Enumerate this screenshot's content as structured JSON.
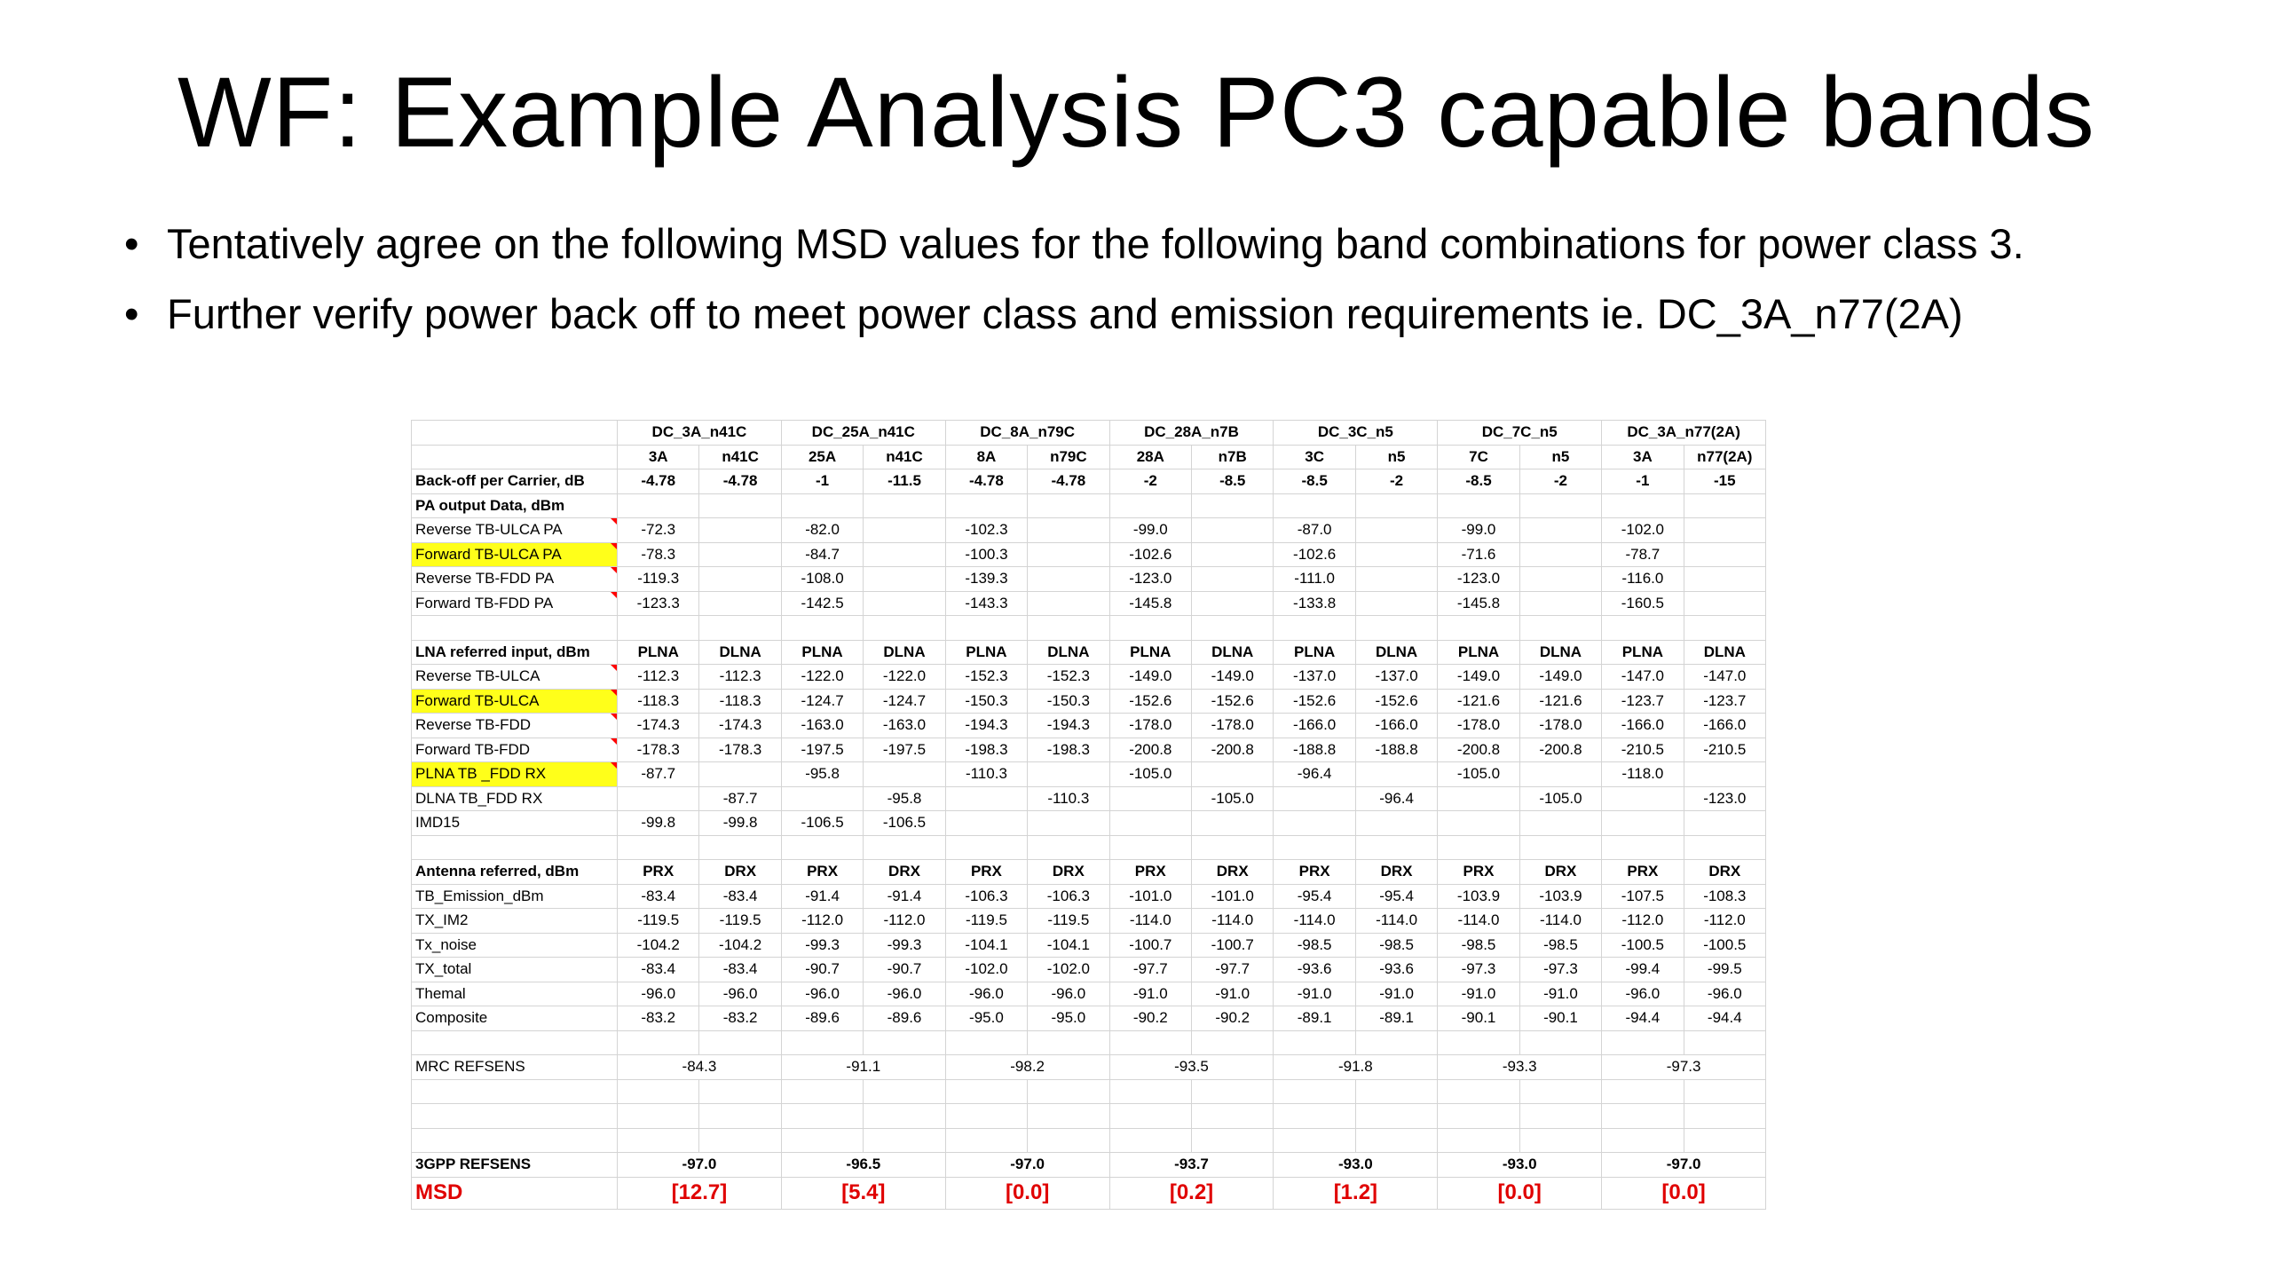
{
  "slide": {
    "title": "WF: Example Analysis PC3 capable bands",
    "bullets": [
      "Tentatively agree on the following MSD values for the following band combinations for power class 3.",
      "Further verify power back off to meet power class and emission requirements ie. DC_3A_n77(2A)"
    ]
  },
  "table": {
    "combos": [
      "DC_3A_n41C",
      "DC_25A_n41C",
      "DC_8A_n79C",
      "DC_28A_n7B",
      "DC_3C_n5",
      "DC_7C_n5",
      "DC_3A_n77(2A)"
    ],
    "bands": [
      "3A",
      "n41C",
      "25A",
      "n41C",
      "8A",
      "n79C",
      "28A",
      "n7B",
      "3C",
      "n5",
      "7C",
      "n5",
      "3A",
      "n77(2A)"
    ],
    "rows": [
      {
        "label": "Back-off per Carrier, dB",
        "style": "bold",
        "values": [
          "-4.78",
          "-4.78",
          "-1",
          "-11.5",
          "-4.78",
          "-4.78",
          "-2",
          "-8.5",
          "-8.5",
          "-2",
          "-8.5",
          "-2",
          "-1",
          "-15"
        ]
      },
      {
        "label": "PA output Data, dBm",
        "style": "bold",
        "values": [
          "",
          "",
          "",
          "",
          "",
          "",
          "",
          "",
          "",
          "",
          "",
          "",
          "",
          ""
        ]
      },
      {
        "label": "Reverse TB-ULCA PA",
        "mark": true,
        "values": [
          "-72.3",
          "",
          "-82.0",
          "",
          "-102.3",
          "",
          "-99.0",
          "",
          "-87.0",
          "",
          "-99.0",
          "",
          "-102.0",
          ""
        ]
      },
      {
        "label": "Forward TB-ULCA PA",
        "mark": true,
        "highlight": true,
        "values": [
          "-78.3",
          "",
          "-84.7",
          "",
          "-100.3",
          "",
          "-102.6",
          "",
          "-102.6",
          "",
          "-71.6",
          "",
          "-78.7",
          ""
        ]
      },
      {
        "label": "Reverse TB-FDD PA",
        "mark": true,
        "values": [
          "-119.3",
          "",
          "-108.0",
          "",
          "-139.3",
          "",
          "-123.0",
          "",
          "-111.0",
          "",
          "-123.0",
          "",
          "-116.0",
          ""
        ]
      },
      {
        "label": "Forward TB-FDD PA",
        "mark": true,
        "values": [
          "-123.3",
          "",
          "-142.5",
          "",
          "-143.3",
          "",
          "-145.8",
          "",
          "-133.8",
          "",
          "-145.8",
          "",
          "-160.5",
          ""
        ]
      },
      {
        "label": "",
        "values": [
          "",
          "",
          "",
          "",
          "",
          "",
          "",
          "",
          "",
          "",
          "",
          "",
          "",
          ""
        ]
      },
      {
        "label": "LNA referred input, dBm",
        "style": "bold",
        "values": [
          "PLNA",
          "DLNA",
          "PLNA",
          "DLNA",
          "PLNA",
          "DLNA",
          "PLNA",
          "DLNA",
          "PLNA",
          "DLNA",
          "PLNA",
          "DLNA",
          "PLNA",
          "DLNA"
        ]
      },
      {
        "label": "Reverse TB-ULCA",
        "mark": true,
        "values": [
          "-112.3",
          "-112.3",
          "-122.0",
          "-122.0",
          "-152.3",
          "-152.3",
          "-149.0",
          "-149.0",
          "-137.0",
          "-137.0",
          "-149.0",
          "-149.0",
          "-147.0",
          "-147.0"
        ]
      },
      {
        "label": "Forward TB-ULCA",
        "mark": true,
        "highlight": true,
        "values": [
          "-118.3",
          "-118.3",
          "-124.7",
          "-124.7",
          "-150.3",
          "-150.3",
          "-152.6",
          "-152.6",
          "-152.6",
          "-152.6",
          "-121.6",
          "-121.6",
          "-123.7",
          "-123.7"
        ]
      },
      {
        "label": "Reverse TB-FDD",
        "mark": true,
        "values": [
          "-174.3",
          "-174.3",
          "-163.0",
          "-163.0",
          "-194.3",
          "-194.3",
          "-178.0",
          "-178.0",
          "-166.0",
          "-166.0",
          "-178.0",
          "-178.0",
          "-166.0",
          "-166.0"
        ]
      },
      {
        "label": "Forward TB-FDD",
        "mark": true,
        "values": [
          "-178.3",
          "-178.3",
          "-197.5",
          "-197.5",
          "-198.3",
          "-198.3",
          "-200.8",
          "-200.8",
          "-188.8",
          "-188.8",
          "-200.8",
          "-200.8",
          "-210.5",
          "-210.5"
        ]
      },
      {
        "label": "PLNA TB _FDD RX",
        "mark": true,
        "highlight": true,
        "values": [
          "-87.7",
          "",
          "-95.8",
          "",
          "-110.3",
          "",
          "-105.0",
          "",
          "-96.4",
          "",
          "-105.0",
          "",
          "-118.0",
          ""
        ]
      },
      {
        "label": "DLNA TB_FDD RX",
        "values": [
          "",
          "-87.7",
          "",
          "-95.8",
          "",
          "-110.3",
          "",
          "-105.0",
          "",
          "-96.4",
          "",
          "-105.0",
          "",
          "-123.0"
        ]
      },
      {
        "label": "IMD15",
        "values": [
          "-99.8",
          "-99.8",
          "-106.5",
          "-106.5",
          "",
          "",
          "",
          "",
          "",
          "",
          "",
          "",
          "",
          ""
        ]
      },
      {
        "label": "",
        "values": [
          "",
          "",
          "",
          "",
          "",
          "",
          "",
          "",
          "",
          "",
          "",
          "",
          "",
          ""
        ]
      },
      {
        "label": "Antenna referred, dBm",
        "style": "bold",
        "values": [
          "PRX",
          "DRX",
          "PRX",
          "DRX",
          "PRX",
          "DRX",
          "PRX",
          "DRX",
          "PRX",
          "DRX",
          "PRX",
          "DRX",
          "PRX",
          "DRX"
        ]
      },
      {
        "label": "TB_Emission_dBm",
        "values": [
          "-83.4",
          "-83.4",
          "-91.4",
          "-91.4",
          "-106.3",
          "-106.3",
          "-101.0",
          "-101.0",
          "-95.4",
          "-95.4",
          "-103.9",
          "-103.9",
          "-107.5",
          "-108.3"
        ]
      },
      {
        "label": "TX_IM2",
        "values": [
          "-119.5",
          "-119.5",
          "-112.0",
          "-112.0",
          "-119.5",
          "-119.5",
          "-114.0",
          "-114.0",
          "-114.0",
          "-114.0",
          "-114.0",
          "-114.0",
          "-112.0",
          "-112.0"
        ]
      },
      {
        "label": "Tx_noise",
        "values": [
          "-104.2",
          "-104.2",
          "-99.3",
          "-99.3",
          "-104.1",
          "-104.1",
          "-100.7",
          "-100.7",
          "-98.5",
          "-98.5",
          "-98.5",
          "-98.5",
          "-100.5",
          "-100.5"
        ]
      },
      {
        "label": "TX_total",
        "values": [
          "-83.4",
          "-83.4",
          "-90.7",
          "-90.7",
          "-102.0",
          "-102.0",
          "-97.7",
          "-97.7",
          "-93.6",
          "-93.6",
          "-97.3",
          "-97.3",
          "-99.4",
          "-99.5"
        ]
      },
      {
        "label": "Themal",
        "values": [
          "-96.0",
          "-96.0",
          "-96.0",
          "-96.0",
          "-96.0",
          "-96.0",
          "-91.0",
          "-91.0",
          "-91.0",
          "-91.0",
          "-91.0",
          "-91.0",
          "-96.0",
          "-96.0"
        ]
      },
      {
        "label": "Composite",
        "values": [
          "-83.2",
          "-83.2",
          "-89.6",
          "-89.6",
          "-95.0",
          "-95.0",
          "-90.2",
          "-90.2",
          "-89.1",
          "-89.1",
          "-90.1",
          "-90.1",
          "-94.4",
          "-94.4"
        ]
      },
      {
        "label": "",
        "values": [
          "",
          "",
          "",
          "",
          "",
          "",
          "",
          "",
          "",
          "",
          "",
          "",
          "",
          ""
        ]
      }
    ],
    "mrc_label": "MRC REFSENS",
    "mrc_values": [
      "-84.3",
      "-91.1",
      "-98.2",
      "-93.5",
      "-91.8",
      "-93.3",
      "-97.3"
    ],
    "refsens_label": "3GPP REFSENS",
    "refsens_values": [
      "-97.0",
      "-96.5",
      "-97.0",
      "-93.7",
      "-93.0",
      "-93.0",
      "-97.0"
    ],
    "msd_label": "MSD",
    "msd_values": [
      "[12.7]",
      "[5.4]",
      "[0.0]",
      "[0.2]",
      "[1.2]",
      "[0.0]",
      "[0.0]"
    ]
  },
  "colors": {
    "highlight": "#ffff1a",
    "msd": "#e00000",
    "marker": "#ff0000"
  }
}
